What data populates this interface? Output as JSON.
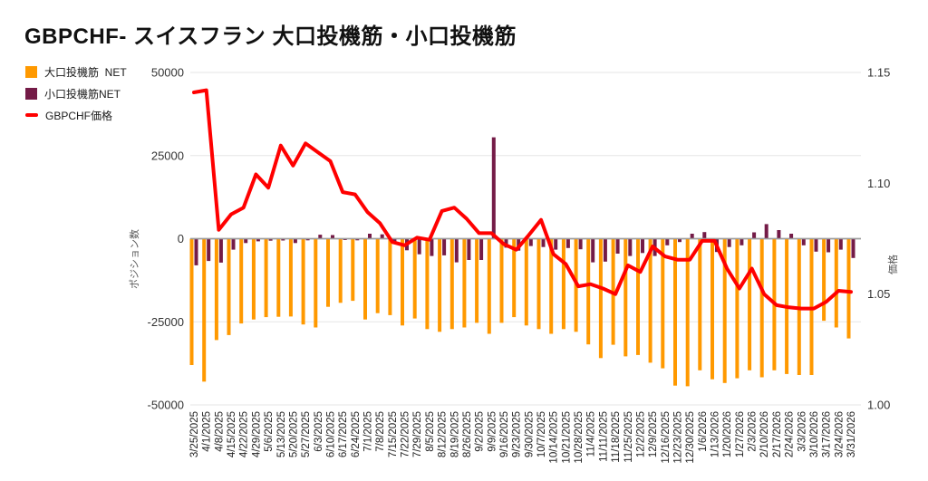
{
  "title": "GBPCHF- スイスフラン 大口投機筋・小口投機筋",
  "legend": [
    {
      "label": "大口投機筋  NET",
      "color": "#ff9900",
      "swatch": "square"
    },
    {
      "label": "小口投機筋NET",
      "color": "#741b47",
      "swatch": "square"
    },
    {
      "label": "GBPCHF価格",
      "color": "#ff0000",
      "swatch": "line"
    }
  ],
  "left_axis": {
    "title": "ポジション数",
    "tick_labels": [
      "50000",
      "25000",
      "0",
      "-25000",
      "-50000"
    ],
    "tick_values": [
      50000,
      25000,
      0,
      -25000,
      -50000
    ]
  },
  "right_axis": {
    "title": "価格",
    "tick_labels": [
      "1.15",
      "1.10",
      "1.05",
      "1.00"
    ],
    "tick_values": [
      1.15,
      1.1,
      1.05,
      1.0
    ]
  },
  "chart_data": {
    "type": "bar",
    "subtype": "grouped bars + overlaid line",
    "title": "GBPCHF- スイスフラン 大口投機筋・小口投機筋",
    "xlabel": "",
    "ylabel_left": "ポジション数",
    "ylabel_right": "価格",
    "left_ylim": [
      -50000,
      50000
    ],
    "right_ylim": [
      1.0,
      1.15
    ],
    "grid": true,
    "legend_position": "top-left",
    "categories": [
      "3/25/2025",
      "4/1/2025",
      "4/8/2025",
      "4/15/2025",
      "4/22/2025",
      "4/29/2025",
      "5/6/2025",
      "5/13/2025",
      "5/20/2025",
      "5/27/2025",
      "6/3/2025",
      "6/10/2025",
      "6/17/2025",
      "6/24/2025",
      "7/1/2025",
      "7/8/2025",
      "7/15/2025",
      "7/22/2025",
      "7/29/2025",
      "8/5/2025",
      "8/12/2025",
      "8/19/2025",
      "8/26/2025",
      "9/2/2025",
      "9/9/2025",
      "9/16/2025",
      "9/23/2025",
      "9/30/2025",
      "10/7/2025",
      "10/14/2025",
      "10/21/2025",
      "10/28/2025",
      "11/4/2025",
      "11/11/2025",
      "11/18/2025",
      "11/25/2025",
      "12/2/2025",
      "12/9/2025",
      "12/16/2025",
      "12/23/2025",
      "12/30/2025",
      "1/6/2026",
      "1/13/2026",
      "1/20/2026",
      "1/27/2026",
      "2/3/2026",
      "2/10/2026",
      "2/17/2026",
      "2/24/2026",
      "3/3/2026",
      "3/10/2026",
      "3/17/2026",
      "3/24/2026",
      "3/31/2026"
    ],
    "series": [
      {
        "name": "大口投機筋  NET",
        "type": "bar",
        "axis": "left",
        "color": "#ff9900",
        "values": [
          -38000,
          -43000,
          -30500,
          -29000,
          -25500,
          -24300,
          -23600,
          -23500,
          -23400,
          -25800,
          -26700,
          -20500,
          -19300,
          -18700,
          -24300,
          -22400,
          -23000,
          -26100,
          -24000,
          -27200,
          -28000,
          -27200,
          -26700,
          -25300,
          -28600,
          -25300,
          -23600,
          -26100,
          -27200,
          -28600,
          -27200,
          -28000,
          -31800,
          -35900,
          -31900,
          -35400,
          -35000,
          -37300,
          -39000,
          -44200,
          -44400,
          -39600,
          -42300,
          -43400,
          -42000,
          -39600,
          -41700,
          -39600,
          -40700,
          -41000,
          -41000,
          -24700,
          -26700,
          -30000
        ]
      },
      {
        "name": "小口投機筋NET",
        "type": "bar",
        "axis": "left",
        "color": "#741b47",
        "values": [
          -8000,
          -6700,
          -7200,
          -3300,
          -1300,
          -800,
          -600,
          -550,
          -1300,
          -500,
          1200,
          1100,
          -400,
          -500,
          1500,
          1300,
          -1500,
          -3500,
          -4700,
          -5200,
          -5000,
          -7100,
          -6400,
          -6400,
          30500,
          -2700,
          -3600,
          -2200,
          -2500,
          -3300,
          -2800,
          -3200,
          -7100,
          -6900,
          -4500,
          -5200,
          -4300,
          -5200,
          -2000,
          -1000,
          1500,
          2000,
          -4000,
          -2500,
          -2000,
          1900,
          4400,
          2600,
          1500,
          -2000,
          -3900,
          -4100,
          -3300,
          -5800
        ]
      },
      {
        "name": "GBPCHF価格",
        "type": "line",
        "axis": "right",
        "color": "#ff0000",
        "values": [
          1.141,
          1.142,
          1.079,
          1.086,
          1.089,
          1.104,
          1.098,
          1.117,
          1.108,
          1.118,
          1.114,
          1.11,
          1.096,
          1.095,
          1.087,
          1.082,
          1.0735,
          1.072,
          1.0755,
          1.0745,
          1.0875,
          1.089,
          1.084,
          1.0775,
          1.0775,
          1.0725,
          1.07,
          1.0765,
          1.0835,
          1.068,
          1.0635,
          1.0535,
          1.0545,
          1.0525,
          1.05,
          1.063,
          1.06,
          1.0715,
          1.067,
          1.0655,
          1.0655,
          1.074,
          1.074,
          1.0615,
          1.0525,
          1.0615,
          1.05,
          1.045,
          1.044,
          1.0435,
          1.0435,
          1.0465,
          1.0515,
          1.051
        ]
      }
    ]
  },
  "colors": {
    "grid": "#e6e6e6",
    "zero_line": "#9e9e9e",
    "tick_text": "#333333",
    "x_label_text": "#222222",
    "axis_title_text": "#555555"
  }
}
